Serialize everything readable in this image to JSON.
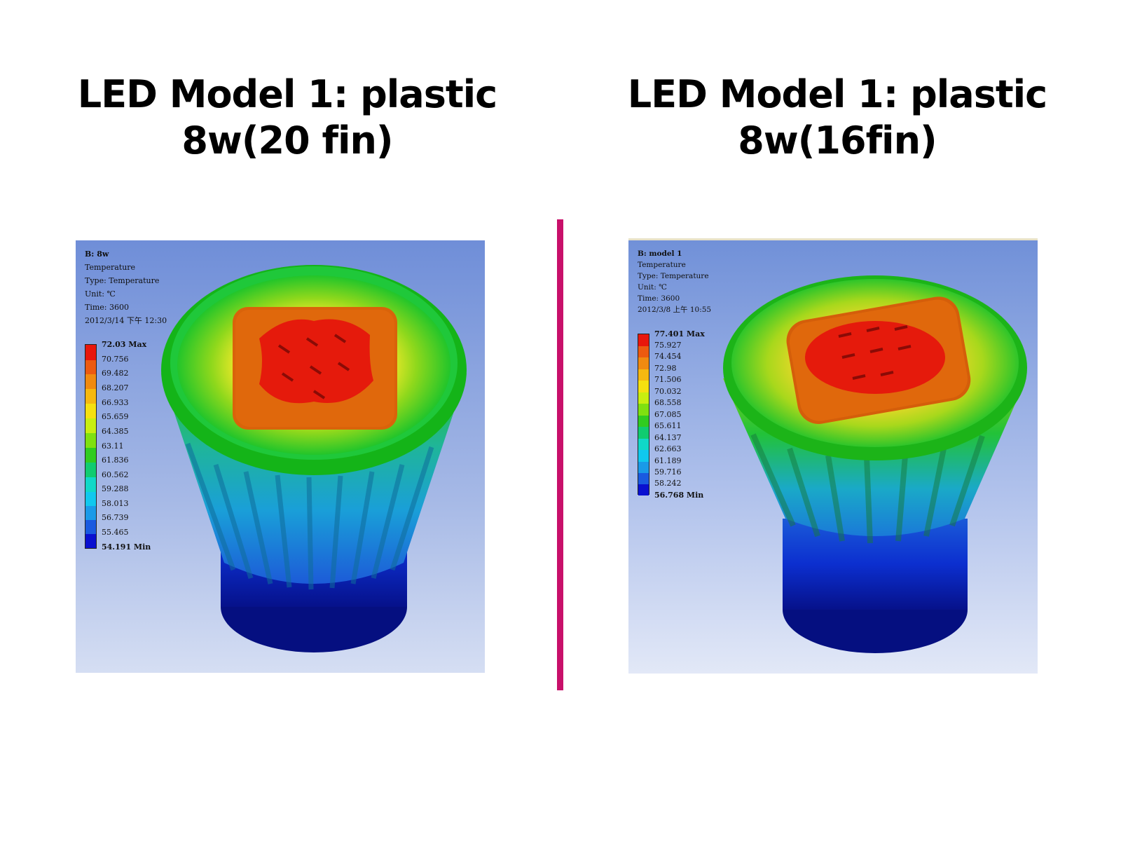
{
  "titles": {
    "left": {
      "line1": "LED Model 1: plastic",
      "line2": "8w(20 fin)"
    },
    "right": {
      "line1": "LED Model 1: plastic",
      "line2": "8w(16fin)"
    }
  },
  "colors": {
    "divider": "#c8106a"
  },
  "panels": {
    "left": {
      "info": {
        "title": "B: 8w",
        "line1": "Temperature",
        "line2": "Type: Temperature",
        "line3": "Unit: ℃",
        "line4": "Time: 3600",
        "line5": "2012/3/14 下午 12:30"
      },
      "legend": {
        "max": "72.03 Max",
        "values": [
          "70.756",
          "69.482",
          "68.207",
          "66.933",
          "65.659",
          "64.385",
          "63.11",
          "61.836",
          "60.562",
          "59.288",
          "58.013",
          "56.739",
          "55.465"
        ],
        "min": "54.191 Min"
      }
    },
    "right": {
      "info": {
        "title": "B: model 1",
        "line1": "Temperature",
        "line2": "Type: Temperature",
        "line3": "Unit: ℃",
        "line4": "Time: 3600",
        "line5": "2012/3/8 上午 10:55"
      },
      "legend": {
        "max": "77.401 Max",
        "values": [
          "75.927",
          "74.454",
          "72.98",
          "71.506",
          "70.032",
          "68.558",
          "67.085",
          "65.611",
          "64.137",
          "62.663",
          "61.189",
          "59.716",
          "58.242"
        ],
        "min": "56.768 Min"
      }
    }
  }
}
